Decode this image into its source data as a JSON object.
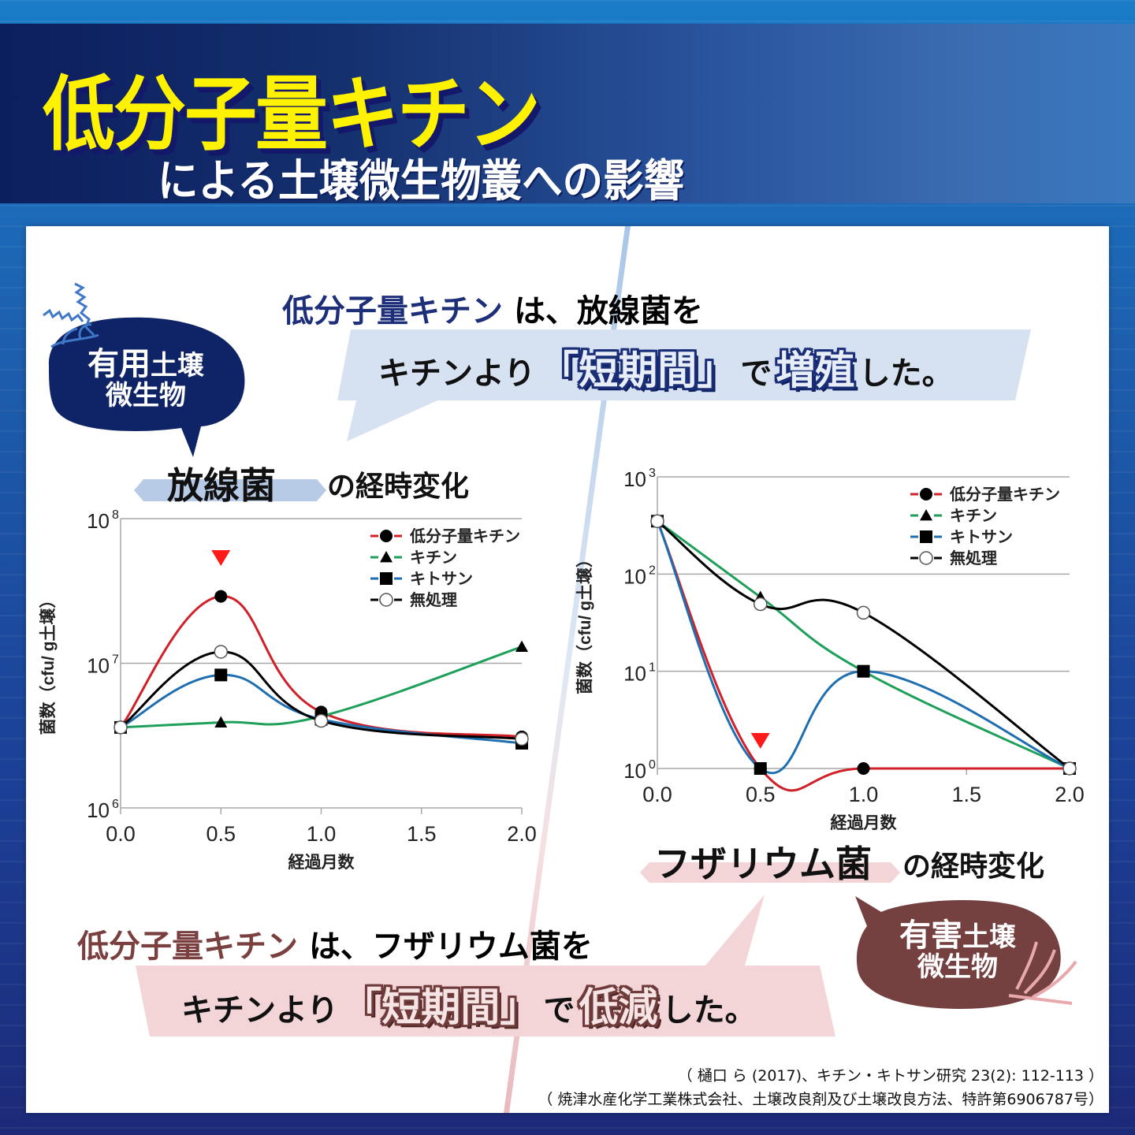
{
  "header": {
    "title_main": "低分子量キチン",
    "title_sub": "による土壌微生物叢への影響"
  },
  "callout_top": {
    "line1_accent": "低分子量キチン",
    "line1_rest": "は、放線菌を",
    "line2_pre": "キチンより",
    "line2_highlight": "「短期間」",
    "line2_mid": "で",
    "line2_verb": "増殖",
    "line2_post": "した。",
    "band_color": "#d6e1f1",
    "accent_color": "#1e2f7a"
  },
  "callout_bottom": {
    "line1_accent": "低分子量キチン",
    "line1_rest": "は、フザリウム菌を",
    "line2_pre": "キチンより",
    "line2_highlight": "「短期間」",
    "line2_mid": "で",
    "line2_verb": "低減",
    "line2_post": "した。",
    "band_color": "#f3d5d7",
    "accent_color": "#7a3f3f"
  },
  "blob_beneficial": {
    "line1_big": "有用",
    "line1_small": "土壌",
    "line2": "微生物",
    "color": "#0f2466"
  },
  "blob_harmful": {
    "line1_big": "有害",
    "line1_small": "土壌",
    "line2": "微生物",
    "color": "#744040"
  },
  "section_left": {
    "title": "放線菌",
    "suffix": "の経時変化",
    "tag_color": "#b8cbe6"
  },
  "section_right": {
    "title": "フザリウム菌",
    "suffix": "の経時変化",
    "tag_color": "#f3d5d7"
  },
  "citations": {
    "line1": "（ 樋口 ら (2017)、キチン・キトサン研究 23(2): 112-113 ）",
    "line2": "（ 焼津水産化学工業株式会社、土壌改良剤及び土壌改良方法、特許第6906787号）"
  },
  "chart_data": [
    {
      "type": "line",
      "title": "放線菌の経時変化",
      "xlabel": "経過月数",
      "ylabel": "菌数（cfu/ g土壌）",
      "yscale": "log",
      "ylim": [
        1000000,
        100000000
      ],
      "yticks": [
        {
          "value": 1000000,
          "label": "10",
          "exp": "6"
        },
        {
          "value": 10000000,
          "label": "10",
          "exp": "7"
        },
        {
          "value": 100000000,
          "label": "10",
          "exp": "8"
        }
      ],
      "xlim": [
        0,
        2.0
      ],
      "xticks": [
        "0.0",
        "0.5",
        "1.0",
        "1.5",
        "2.0"
      ],
      "x": [
        0,
        0.5,
        1.0,
        2.0
      ],
      "grid": "horizontal",
      "legend_position": "top-right",
      "annotation": {
        "marker": "red-down-triangle",
        "x": 0.5,
        "note": "peak of 低分子量キチン"
      },
      "series": [
        {
          "name": "低分子量キチン",
          "marker": "filled-circle",
          "color": "#d0202a",
          "values": [
            3600000,
            29000000,
            4600000,
            3100000
          ]
        },
        {
          "name": "キチン",
          "marker": "filled-triangle",
          "color": "#1fa05a",
          "values": [
            3600000,
            3900000,
            4300000,
            13000000
          ]
        },
        {
          "name": "キトサン",
          "marker": "filled-square",
          "color": "#1f6fb0",
          "values": [
            3600000,
            8300000,
            4100000,
            2800000
          ]
        },
        {
          "name": "無処理",
          "marker": "open-circle",
          "color": "#000000",
          "values": [
            3600000,
            12000000,
            4000000,
            3000000
          ]
        }
      ]
    },
    {
      "type": "line",
      "title": "フザリウム菌の経時変化",
      "xlabel": "経過月数",
      "ylabel": "菌数（cfu/ g土壌）",
      "yscale": "log",
      "ylim": [
        1,
        1000
      ],
      "yticks": [
        {
          "value": 1,
          "label": "10",
          "exp": "0"
        },
        {
          "value": 10,
          "label": "10",
          "exp": "1"
        },
        {
          "value": 100,
          "label": "10",
          "exp": "2"
        },
        {
          "value": 1000,
          "label": "10",
          "exp": "3"
        }
      ],
      "xlim": [
        0,
        2.0
      ],
      "xticks": [
        "0.0",
        "0.5",
        "1.0",
        "1.5",
        "2.0"
      ],
      "x": [
        0,
        0.5,
        1.0,
        2.0
      ],
      "grid": "horizontal",
      "legend_position": "top-right",
      "annotation": {
        "marker": "red-down-triangle",
        "x": 0.5,
        "note": "低分子量キチン reaches detection floor"
      },
      "series": [
        {
          "name": "低分子量キチン",
          "marker": "filled-circle",
          "color": "#d0202a",
          "values": [
            350,
            1,
            1,
            1
          ]
        },
        {
          "name": "キチン",
          "marker": "filled-triangle",
          "color": "#1fa05a",
          "values": [
            350,
            58,
            10,
            1
          ]
        },
        {
          "name": "キトサン",
          "marker": "filled-square",
          "color": "#1f6fb0",
          "values": [
            350,
            1,
            10,
            1
          ]
        },
        {
          "name": "無処理",
          "marker": "open-circle",
          "color": "#000000",
          "values": [
            350,
            49,
            40,
            1
          ]
        }
      ]
    }
  ]
}
